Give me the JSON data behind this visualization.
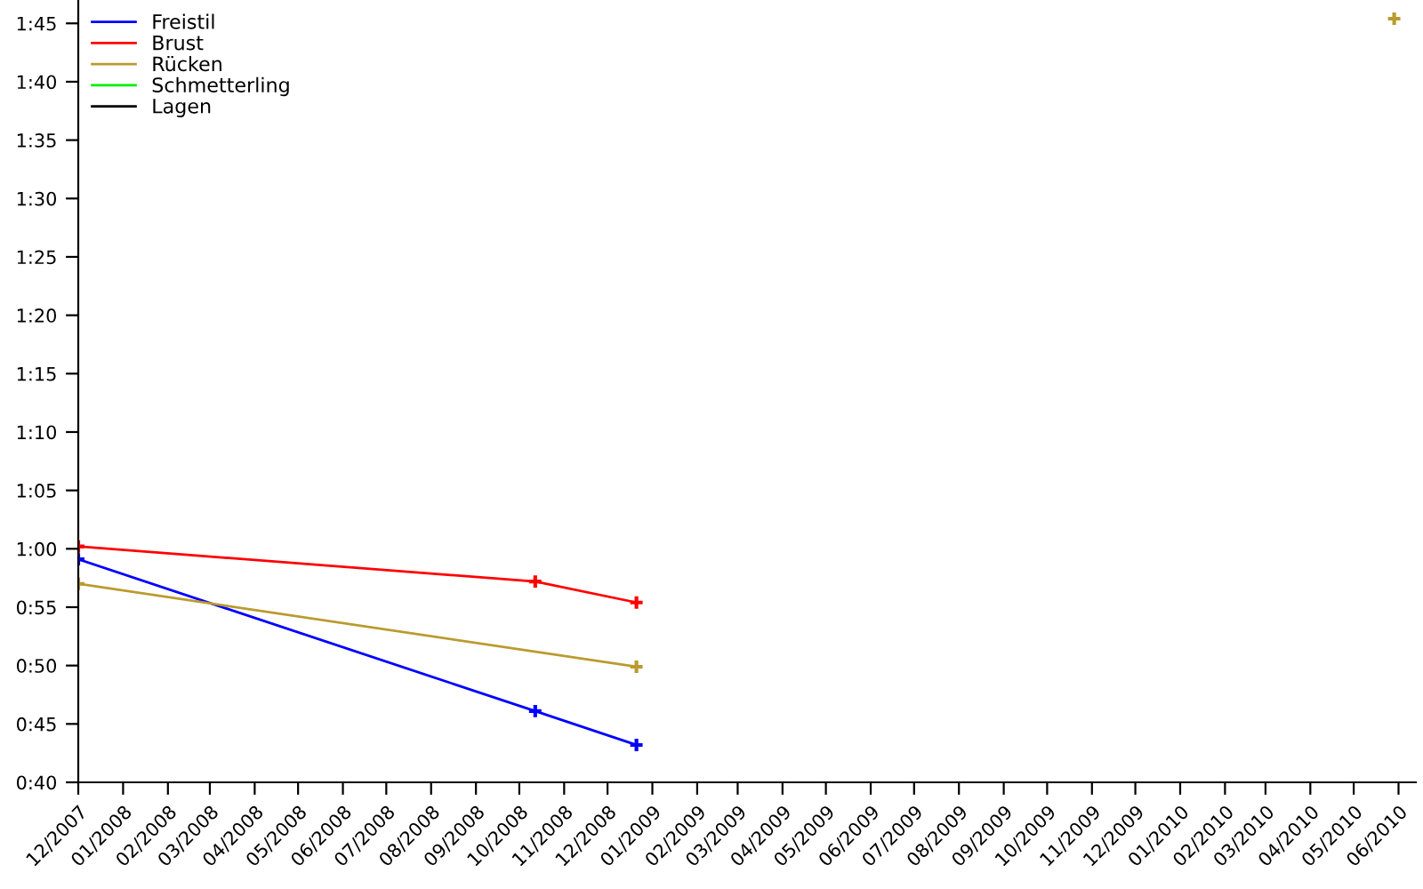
{
  "chart_data": {
    "type": "line",
    "xlim": [
      "2007-12-01",
      "2010-06-13"
    ],
    "xticks": [
      {
        "value": "2007-12-01",
        "label": "12/2007"
      },
      {
        "value": "2008-01-01",
        "label": "01/2008"
      },
      {
        "value": "2008-02-01",
        "label": "02/2008"
      },
      {
        "value": "2008-03-01",
        "label": "03/2008"
      },
      {
        "value": "2008-04-01",
        "label": "04/2008"
      },
      {
        "value": "2008-05-01",
        "label": "05/2008"
      },
      {
        "value": "2008-06-01",
        "label": "06/2008"
      },
      {
        "value": "2008-07-01",
        "label": "07/2008"
      },
      {
        "value": "2008-08-01",
        "label": "08/2008"
      },
      {
        "value": "2008-09-01",
        "label": "09/2008"
      },
      {
        "value": "2008-10-01",
        "label": "10/2008"
      },
      {
        "value": "2008-11-01",
        "label": "11/2008"
      },
      {
        "value": "2008-12-01",
        "label": "12/2008"
      },
      {
        "value": "2009-01-01",
        "label": "01/2009"
      },
      {
        "value": "2009-02-01",
        "label": "02/2009"
      },
      {
        "value": "2009-03-01",
        "label": "03/2009"
      },
      {
        "value": "2009-04-01",
        "label": "04/2009"
      },
      {
        "value": "2009-05-01",
        "label": "05/2009"
      },
      {
        "value": "2009-06-01",
        "label": "06/2009"
      },
      {
        "value": "2009-07-01",
        "label": "07/2009"
      },
      {
        "value": "2009-08-01",
        "label": "08/2009"
      },
      {
        "value": "2009-09-01",
        "label": "09/2009"
      },
      {
        "value": "2009-10-01",
        "label": "10/2009"
      },
      {
        "value": "2009-11-01",
        "label": "11/2009"
      },
      {
        "value": "2009-12-01",
        "label": "12/2009"
      },
      {
        "value": "2010-01-01",
        "label": "01/2010"
      },
      {
        "value": "2010-02-01",
        "label": "02/2010"
      },
      {
        "value": "2010-03-01",
        "label": "03/2010"
      },
      {
        "value": "2010-04-01",
        "label": "04/2010"
      },
      {
        "value": "2010-05-01",
        "label": "05/2010"
      },
      {
        "value": "2010-06-01",
        "label": "06/2010"
      }
    ],
    "ylim": [
      40,
      107
    ],
    "yticks": [
      {
        "value": 40,
        "label": "0:40"
      },
      {
        "value": 45,
        "label": "0:45"
      },
      {
        "value": 50,
        "label": "0:50"
      },
      {
        "value": 55,
        "label": "0:55"
      },
      {
        "value": 60,
        "label": "1:00"
      },
      {
        "value": 65,
        "label": "1:05"
      },
      {
        "value": 70,
        "label": "1:10"
      },
      {
        "value": 75,
        "label": "1:15"
      },
      {
        "value": 80,
        "label": "1:20"
      },
      {
        "value": 85,
        "label": "1:25"
      },
      {
        "value": 90,
        "label": "1:30"
      },
      {
        "value": 95,
        "label": "1:35"
      },
      {
        "value": 100,
        "label": "1:40"
      },
      {
        "value": 105,
        "label": "1:45"
      }
    ],
    "series": [
      {
        "name": "Freistil",
        "color": "#0000ff",
        "x": [
          "2007-12-01",
          "2008-10-12",
          "2008-12-21"
        ],
        "values": [
          59.1,
          46.1,
          43.2
        ]
      },
      {
        "name": "Brust",
        "color": "#ff0000",
        "x": [
          "2007-12-01",
          "2008-10-12",
          "2008-12-21"
        ],
        "values": [
          60.2,
          57.2,
          55.4
        ]
      },
      {
        "name": "Rücken",
        "color": "#bb9a2e",
        "x": [
          "2007-12-01",
          "2008-12-21",
          "2009-06-01",
          "2010-05-29"
        ],
        "values": [
          57.0,
          49.9,
          null,
          105.4
        ]
      },
      {
        "name": "Schmetterling",
        "color": "#00ee00"
      },
      {
        "name": "Lagen",
        "color": "#000000"
      }
    ],
    "marker": "cross",
    "line_style": "solid",
    "grid": false,
    "legend": "top left"
  }
}
